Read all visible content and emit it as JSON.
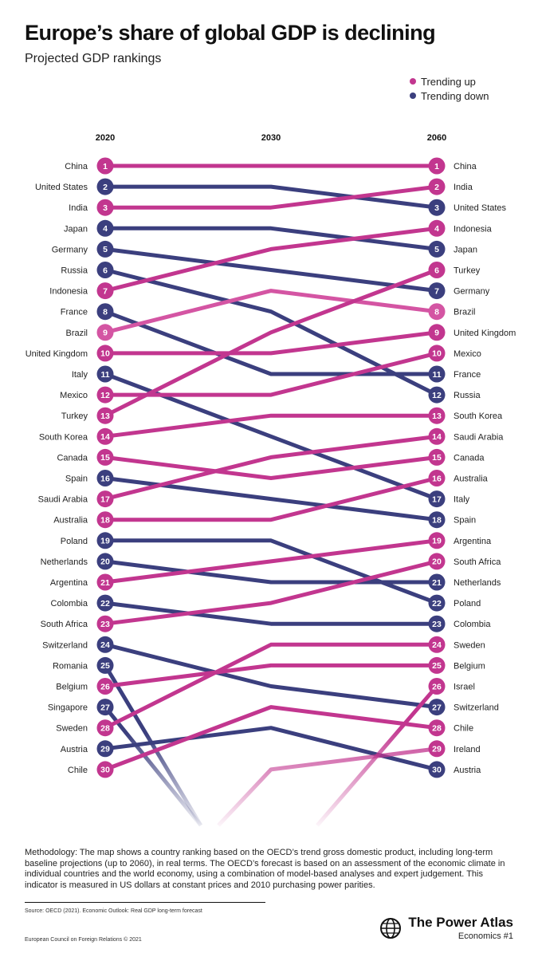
{
  "header": {
    "title": "Europe’s share of global GDP is declining",
    "subtitle": "Projected GDP rankings"
  },
  "legend": [
    {
      "label": "Trending up",
      "color": "#c2368f"
    },
    {
      "label": "Trending down",
      "color": "#3b3f7e"
    }
  ],
  "colors": {
    "up": "#c2368f",
    "down": "#3b3f7e",
    "brazil": "#d455a3"
  },
  "chart_data": {
    "type": "line",
    "subtype": "bump",
    "x": [
      "2020",
      "2030",
      "2060"
    ],
    "y_axis": "rank",
    "series": [
      {
        "name": "China",
        "ranks": [
          1,
          1,
          1
        ],
        "trend": "up"
      },
      {
        "name": "United States",
        "ranks": [
          2,
          2,
          3
        ],
        "trend": "down"
      },
      {
        "name": "India",
        "ranks": [
          3,
          3,
          2
        ],
        "trend": "up"
      },
      {
        "name": "Japan",
        "ranks": [
          4,
          4,
          5
        ],
        "trend": "down"
      },
      {
        "name": "Germany",
        "ranks": [
          5,
          6,
          7
        ],
        "trend": "down"
      },
      {
        "name": "Russia",
        "ranks": [
          6,
          8,
          12
        ],
        "trend": "down"
      },
      {
        "name": "Indonesia",
        "ranks": [
          7,
          5,
          4
        ],
        "trend": "up"
      },
      {
        "name": "France",
        "ranks": [
          8,
          11,
          11
        ],
        "trend": "down"
      },
      {
        "name": "Brazil",
        "ranks": [
          9,
          7,
          8
        ],
        "trend": "up"
      },
      {
        "name": "United Kingdom",
        "ranks": [
          10,
          10,
          9
        ],
        "trend": "up"
      },
      {
        "name": "Italy",
        "ranks": [
          11,
          14,
          17
        ],
        "trend": "down"
      },
      {
        "name": "Mexico",
        "ranks": [
          12,
          12,
          10
        ],
        "trend": "up"
      },
      {
        "name": "Turkey",
        "ranks": [
          13,
          9,
          6
        ],
        "trend": "up"
      },
      {
        "name": "South Korea",
        "ranks": [
          14,
          13,
          13
        ],
        "trend": "up"
      },
      {
        "name": "Canada",
        "ranks": [
          15,
          16,
          15
        ],
        "trend": "up"
      },
      {
        "name": "Spain",
        "ranks": [
          16,
          17,
          18
        ],
        "trend": "down"
      },
      {
        "name": "Saudi Arabia",
        "ranks": [
          17,
          15,
          14
        ],
        "trend": "up"
      },
      {
        "name": "Australia",
        "ranks": [
          18,
          18,
          16
        ],
        "trend": "up"
      },
      {
        "name": "Poland",
        "ranks": [
          19,
          19,
          22
        ],
        "trend": "down"
      },
      {
        "name": "Netherlands",
        "ranks": [
          20,
          21,
          21
        ],
        "trend": "down"
      },
      {
        "name": "Argentina",
        "ranks": [
          21,
          20,
          19
        ],
        "trend": "up"
      },
      {
        "name": "Colombia",
        "ranks": [
          22,
          23,
          23
        ],
        "trend": "down"
      },
      {
        "name": "South Africa",
        "ranks": [
          23,
          22,
          20
        ],
        "trend": "up"
      },
      {
        "name": "Switzerland",
        "ranks": [
          24,
          26,
          27
        ],
        "trend": "down"
      },
      {
        "name": "Romania",
        "ranks": [
          25,
          null,
          null
        ],
        "trend": "down"
      },
      {
        "name": "Belgium",
        "ranks": [
          26,
          25,
          25
        ],
        "trend": "up"
      },
      {
        "name": "Singapore",
        "ranks": [
          27,
          null,
          null
        ],
        "trend": "down"
      },
      {
        "name": "Sweden",
        "ranks": [
          28,
          24,
          24
        ],
        "trend": "up"
      },
      {
        "name": "Austria",
        "ranks": [
          29,
          28,
          30
        ],
        "trend": "down"
      },
      {
        "name": "Chile",
        "ranks": [
          30,
          27,
          28
        ],
        "trend": "up"
      },
      {
        "name": "Ireland",
        "ranks": [
          null,
          30,
          29
        ],
        "trend": "up"
      },
      {
        "name": "Israel",
        "ranks": [
          null,
          null,
          26
        ],
        "trend": "up"
      }
    ]
  },
  "footer": {
    "methodology": "Methodology: The map shows a country ranking based on the OECD’s trend gross domestic product, including long-term baseline projections (up to 2060), in real terms. The OECD’s forecast is based on an assessment of the economic climate in individual countries and the world economy, using a combination of model-based analyses and expert judgement. This indicator is measured in US dollars at constant prices and 2010 purchasing power parities.",
    "source": "Source: OECD (2021). Economic Outlook: Real GDP long-term forecast",
    "copyright": "European Council on Foreign Relations © 2021",
    "brand": "The Power Atlas",
    "series_label": "Economics #1"
  }
}
